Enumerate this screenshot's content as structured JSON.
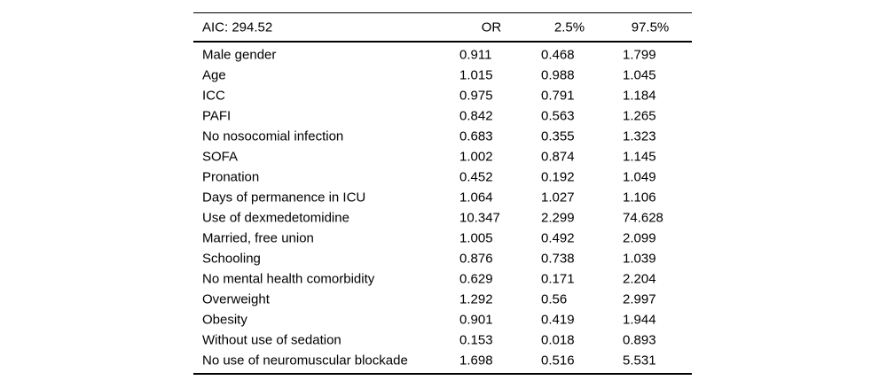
{
  "colors": {
    "text": "#000000",
    "rule": "#000000",
    "background": "#ffffff"
  },
  "chart_data": {
    "type": "table",
    "title": "AIC: 294.52",
    "columns": [
      "OR",
      "2.5%",
      "97.5%"
    ],
    "rows": [
      {
        "label": "Male gender",
        "or": "0.911",
        "ci_low": "0.468",
        "ci_high": "1.799"
      },
      {
        "label": "Age",
        "or": "1.015",
        "ci_low": "0.988",
        "ci_high": "1.045"
      },
      {
        "label": "ICC",
        "or": "0.975",
        "ci_low": "0.791",
        "ci_high": "1.184"
      },
      {
        "label": "PAFI",
        "or": "0.842",
        "ci_low": "0.563",
        "ci_high": "1.265"
      },
      {
        "label": "No nosocomial infection",
        "or": "0.683",
        "ci_low": "0.355",
        "ci_high": "1.323"
      },
      {
        "label": "SOFA",
        "or": "1.002",
        "ci_low": "0.874",
        "ci_high": "1.145"
      },
      {
        "label": "Pronation",
        "or": "0.452",
        "ci_low": "0.192",
        "ci_high": "1.049"
      },
      {
        "label": "Days of permanence in ICU",
        "or": "1.064",
        "ci_low": "1.027",
        "ci_high": "1.106"
      },
      {
        "label": "Use of dexmedetomidine",
        "or": "10.347",
        "ci_low": "2.299",
        "ci_high": "74.628"
      },
      {
        "label": "Married, free union",
        "or": "1.005",
        "ci_low": "0.492",
        "ci_high": "2.099"
      },
      {
        "label": "Schooling",
        "or": "0.876",
        "ci_low": "0.738",
        "ci_high": "1.039"
      },
      {
        "label": "No mental health comorbidity",
        "or": "0.629",
        "ci_low": "0.171",
        "ci_high": "2.204"
      },
      {
        "label": "Overweight",
        "or": "1.292",
        "ci_low": "0.56",
        "ci_high": "2.997"
      },
      {
        "label": "Obesity",
        "or": "0.901",
        "ci_low": "0.419",
        "ci_high": "1.944"
      },
      {
        "label": "Without use of sedation",
        "or": "0.153",
        "ci_low": "0.018",
        "ci_high": "0.893"
      },
      {
        "label": "No use of neuromuscular blockade",
        "or": "1.698",
        "ci_low": "0.516",
        "ci_high": "5.531"
      }
    ]
  }
}
